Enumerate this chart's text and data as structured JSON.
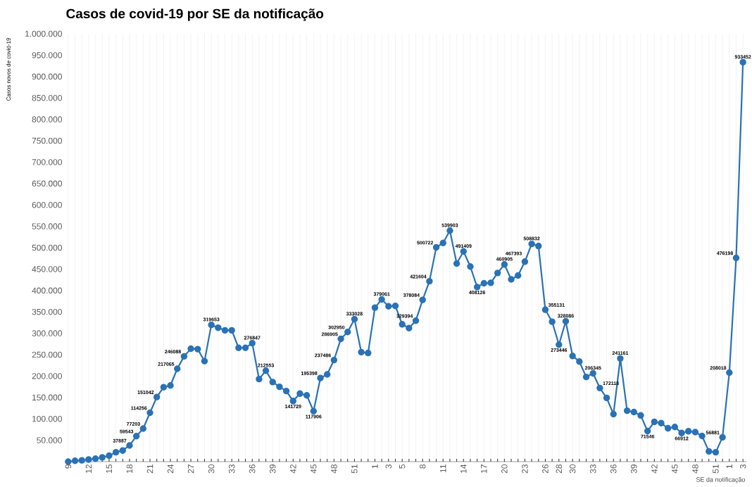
{
  "chart_data": {
    "type": "line",
    "title": "Casos de covid-19 por SE da notificação",
    "xlabel": "SE da notificação",
    "ylabel": "Casos novos de covid-19",
    "categories": [
      "9",
      null,
      null,
      "12",
      null,
      null,
      "15",
      null,
      null,
      "18",
      null,
      null,
      "21",
      null,
      null,
      "24",
      null,
      null,
      "27",
      null,
      null,
      "30",
      null,
      null,
      "33",
      null,
      null,
      "36",
      null,
      null,
      "39",
      null,
      null,
      "42",
      null,
      null,
      "45",
      null,
      null,
      "48",
      null,
      null,
      "51",
      null,
      null,
      "1",
      null,
      "3",
      null,
      "5",
      null,
      null,
      "8",
      null,
      null,
      "11",
      null,
      null,
      "14",
      null,
      null,
      "17",
      null,
      null,
      "20",
      null,
      null,
      "23",
      null,
      null,
      "26",
      null,
      "28",
      null,
      "30",
      null,
      null,
      "33",
      null,
      null,
      "36",
      null,
      null,
      "39",
      null,
      null,
      "42",
      null,
      null,
      "45",
      null,
      null,
      "48",
      null,
      null,
      "51",
      null,
      "1",
      null,
      "3"
    ],
    "values": [
      0,
      2000,
      3000,
      5000,
      7000,
      10000,
      14000,
      22000,
      26000,
      37887,
      59543,
      77203,
      114256,
      151042,
      174000,
      178000,
      217065,
      246088,
      264000,
      263000,
      235000,
      319653,
      313000,
      307000,
      307000,
      266000,
      266000,
      276847,
      193000,
      212553,
      186000,
      175000,
      165000,
      141729,
      159000,
      155000,
      117906,
      195398,
      204000,
      237486,
      286905,
      302950,
      333028,
      256000,
      254000,
      360000,
      379061,
      363000,
      364000,
      321000,
      312000,
      329394,
      378084,
      421604,
      500722,
      511000,
      539903,
      463000,
      491409,
      456000,
      408126,
      417000,
      418000,
      441000,
      460905,
      426000,
      435000,
      467393,
      508832,
      504000,
      355131,
      327000,
      273446,
      328086,
      247000,
      234000,
      198000,
      206345,
      172118,
      149000,
      111000,
      241161,
      119000,
      116000,
      108000,
      71546,
      93000,
      90000,
      78000,
      81000,
      66912,
      71000,
      69000,
      60000,
      24000,
      22000,
      56881,
      208018,
      476198,
      933452
    ],
    "value_labels": [
      null,
      null,
      null,
      null,
      null,
      null,
      null,
      null,
      null,
      "37887",
      "59543",
      "77203",
      "114256",
      "151042",
      null,
      null,
      "217065",
      "246088",
      null,
      null,
      null,
      "319653",
      null,
      null,
      null,
      null,
      null,
      "276847",
      null,
      "212553",
      null,
      null,
      null,
      "141729",
      null,
      null,
      "117906",
      "195398",
      null,
      "237486",
      "286905",
      "302950",
      "333028",
      null,
      null,
      null,
      "379061",
      null,
      null,
      null,
      null,
      "329394",
      "378084",
      "421604",
      "500722",
      null,
      "539903",
      null,
      "491409",
      null,
      "408126",
      null,
      null,
      null,
      "460905",
      null,
      null,
      "467393",
      "508832",
      null,
      "355131",
      null,
      "273446",
      "328086",
      null,
      null,
      null,
      "206345",
      "172118",
      null,
      null,
      "241161",
      null,
      null,
      null,
      "71546",
      null,
      null,
      null,
      null,
      "66912",
      null,
      null,
      null,
      null,
      null,
      "56881",
      "208018",
      "476198",
      "933452"
    ],
    "color": "#2a72b5",
    "marker": "circle",
    "grid": "x",
    "ylim": [
      0,
      1000000
    ],
    "yticks": [
      {
        "value": 50000,
        "label": "50.000"
      },
      {
        "value": 100000,
        "label": "100.000"
      },
      {
        "value": 150000,
        "label": "150.000"
      },
      {
        "value": 200000,
        "label": "200.000"
      },
      {
        "value": 250000,
        "label": "250.000"
      },
      {
        "value": 300000,
        "label": "300.000"
      },
      {
        "value": 350000,
        "label": "350.000"
      },
      {
        "value": 400000,
        "label": "400.000"
      },
      {
        "value": 450000,
        "label": "450.000"
      },
      {
        "value": 500000,
        "label": "500.000"
      },
      {
        "value": 550000,
        "label": "550.000"
      },
      {
        "value": 600000,
        "label": "600.000"
      },
      {
        "value": 650000,
        "label": "650.000"
      },
      {
        "value": 700000,
        "label": "700.000"
      },
      {
        "value": 750000,
        "label": "750.000"
      },
      {
        "value": 800000,
        "label": "800.000"
      },
      {
        "value": 850000,
        "label": "850.000"
      },
      {
        "value": 900000,
        "label": "900.000"
      },
      {
        "value": 950000,
        "label": "950.000"
      },
      {
        "value": 1000000,
        "label": "1.000.000"
      }
    ]
  }
}
